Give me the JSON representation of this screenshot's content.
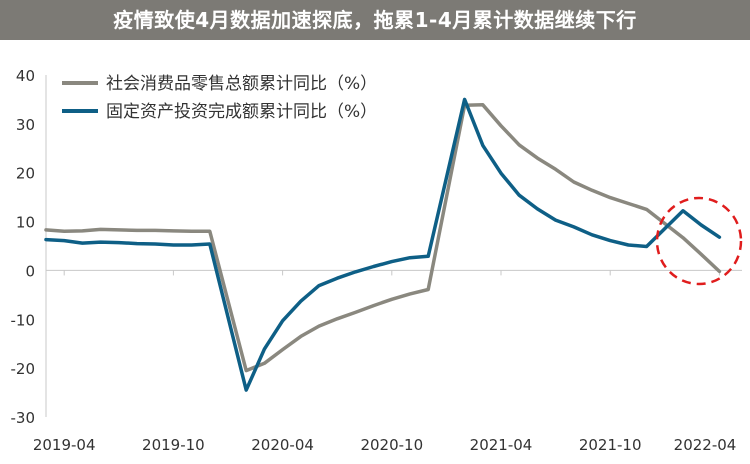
{
  "title": "疫情致使4月数据加速探底，拖累1-4月累计数据继续下行",
  "colors": {
    "retail": "#8a887f",
    "fai": "#0e5f86",
    "highlight": "#e01d1d",
    "title_bg": "#7c7a75"
  },
  "chart_data": {
    "type": "line",
    "title": "疫情致使4月数据加速探底，拖累1-4月累计数据继续下行",
    "xlabel": "",
    "ylabel": "",
    "ylim": [
      -30,
      40
    ],
    "yticks": [
      "40",
      "30",
      "20",
      "10",
      "0",
      "-10",
      "-20",
      "-30"
    ],
    "x_tick_labels": [
      "2019-04",
      "2019-10",
      "2020-04",
      "2020-10",
      "2021-04",
      "2021-10",
      "2022-04"
    ],
    "grid": false,
    "legend_position": "top-left",
    "x": [
      "2019-03",
      "2019-04",
      "2019-05",
      "2019-06",
      "2019-07",
      "2019-08",
      "2019-09",
      "2019-10",
      "2019-11",
      "2019-12",
      "2020-02",
      "2020-03",
      "2020-04",
      "2020-05",
      "2020-06",
      "2020-07",
      "2020-08",
      "2020-09",
      "2020-10",
      "2020-11",
      "2020-12",
      "2021-02",
      "2021-03",
      "2021-04",
      "2021-05",
      "2021-06",
      "2021-07",
      "2021-08",
      "2021-09",
      "2021-10",
      "2021-11",
      "2021-12",
      "2022-02",
      "2022-03",
      "2022-04"
    ],
    "series": [
      {
        "name": "社会消费品零售总额累计同比（%）",
        "values": [
          8.3,
          8.0,
          8.1,
          8.4,
          8.3,
          8.2,
          8.2,
          8.1,
          8.0,
          8.0,
          -20.5,
          -19.0,
          -16.2,
          -13.5,
          -11.4,
          -9.9,
          -8.6,
          -7.2,
          -5.9,
          -4.8,
          -3.9,
          33.8,
          33.9,
          29.6,
          25.7,
          23.0,
          20.7,
          18.1,
          16.4,
          14.9,
          13.7,
          12.5,
          6.7,
          3.3,
          -0.2
        ]
      },
      {
        "name": "固定资产投资完成额累计同比（%）",
        "values": [
          6.3,
          6.1,
          5.6,
          5.8,
          5.7,
          5.5,
          5.4,
          5.2,
          5.2,
          5.4,
          -24.5,
          -16.1,
          -10.3,
          -6.3,
          -3.1,
          -1.6,
          -0.3,
          0.8,
          1.8,
          2.6,
          2.9,
          35.0,
          25.6,
          19.9,
          15.4,
          12.6,
          10.3,
          8.9,
          7.3,
          6.1,
          5.2,
          4.9,
          12.2,
          9.3,
          6.8
        ]
      }
    ],
    "annotation": "dashed-circle-highlight-2022"
  }
}
